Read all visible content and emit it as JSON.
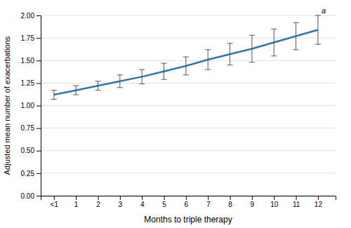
{
  "chart_data": {
    "type": "line",
    "xlabel": "Months to triple therapy",
    "ylabel": "Adjusted mean number of exacerbations",
    "x": [
      0,
      1,
      2,
      3,
      4,
      5,
      6,
      7,
      8,
      9,
      10,
      11,
      12
    ],
    "values": [
      1.12,
      1.17,
      1.22,
      1.27,
      1.32,
      1.38,
      1.44,
      1.51,
      1.57,
      1.63,
      1.7,
      1.77,
      1.84
    ],
    "lower": [
      1.07,
      1.12,
      1.17,
      1.2,
      1.24,
      1.29,
      1.34,
      1.4,
      1.45,
      1.48,
      1.55,
      1.62,
      1.68
    ],
    "upper": [
      1.17,
      1.22,
      1.27,
      1.34,
      1.4,
      1.47,
      1.54,
      1.62,
      1.69,
      1.78,
      1.85,
      1.92,
      2.0
    ],
    "color": "#2E75B6",
    "xlim": [
      -0.6,
      12.8
    ],
    "xticks": [
      {
        "value": 0,
        "label": "<1"
      },
      1,
      2,
      3,
      4,
      5,
      6,
      7,
      8,
      9,
      10,
      11,
      12
    ],
    "ylim": [
      0.0,
      2.0
    ],
    "yticks": [
      {
        "value": 0.0,
        "label": "0.00"
      },
      {
        "value": 0.25,
        "label": "0.25"
      },
      {
        "value": 0.5,
        "label": "0.50"
      },
      {
        "value": 0.75,
        "label": "0.75"
      },
      {
        "value": 1.0,
        "label": "1.00"
      },
      {
        "value": 1.25,
        "label": "1.25"
      },
      {
        "value": 1.5,
        "label": "1.50"
      },
      {
        "value": 1.75,
        "label": "1.75"
      },
      {
        "value": 2.0,
        "label": "2.00"
      }
    ],
    "annotation": "a",
    "grid": true
  }
}
